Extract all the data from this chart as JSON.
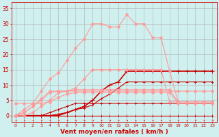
{
  "x": [
    0,
    1,
    2,
    3,
    4,
    5,
    6,
    7,
    8,
    9,
    10,
    11,
    12,
    13,
    14,
    15,
    16,
    17,
    18,
    19,
    20,
    21,
    22,
    23
  ],
  "background_color": "#cff0ee",
  "grid_color": "#b0b0b0",
  "xlabel": "Vent moyen/en rafales ( km/h )",
  "xlabel_color": "#cc0000",
  "tick_color": "#cc0000",
  "ylim": [
    -2,
    37
  ],
  "xlim": [
    -0.5,
    23.5
  ],
  "yticks": [
    0,
    5,
    10,
    15,
    20,
    25,
    30,
    35
  ],
  "lines": [
    {
      "y": [
        0,
        0,
        0,
        0,
        0,
        0,
        0,
        0,
        0,
        0,
        0,
        0,
        0,
        0,
        0,
        0,
        0,
        0,
        0,
        0,
        0,
        0,
        0,
        0
      ],
      "color": "#cc0000",
      "marker": "+",
      "lw": 0.8,
      "ms": 3.5
    },
    {
      "y": [
        0,
        0,
        0,
        0,
        1,
        2,
        3,
        4,
        4,
        4,
        4,
        4,
        4,
        4,
        4,
        4,
        4,
        4,
        4,
        4,
        4,
        4,
        4,
        4
      ],
      "color": "#cc0000",
      "marker": "+",
      "lw": 0.8,
      "ms": 3.5
    },
    {
      "y": [
        0,
        0,
        0,
        0,
        0,
        0,
        1,
        2,
        3,
        5,
        8,
        10,
        11,
        14.5,
        14.5,
        14.5,
        14.5,
        14.5,
        14.5,
        14.5,
        14.5,
        14.5,
        14.5,
        14.5
      ],
      "color": "#cc0000",
      "marker": "+",
      "lw": 1.2,
      "ms": 4
    },
    {
      "y": [
        0,
        0,
        0,
        0,
        0,
        0.5,
        1,
        2,
        2.5,
        3.5,
        5.5,
        7,
        9,
        11,
        11,
        11,
        11,
        11,
        11,
        11,
        11,
        11,
        11,
        11
      ],
      "color": "#cc0000",
      "marker": "+",
      "lw": 0.8,
      "ms": 3.5
    },
    {
      "y": [
        4,
        4,
        4,
        4,
        4.5,
        6,
        7,
        7.5,
        7.5,
        7.5,
        7.5,
        7.5,
        7.5,
        7.5,
        7.5,
        7.5,
        7.5,
        7.5,
        7.5,
        4,
        4,
        4,
        4,
        4
      ],
      "color": "#ff9999",
      "marker": "o",
      "lw": 0.8,
      "ms": 2.5
    },
    {
      "y": [
        0,
        1,
        3,
        5,
        7.5,
        8,
        8,
        8,
        8,
        8,
        8,
        8,
        8,
        8,
        8,
        8,
        8,
        8,
        8,
        8,
        8,
        8,
        8,
        8
      ],
      "color": "#ff9999",
      "marker": "o",
      "lw": 0.8,
      "ms": 2.5
    },
    {
      "y": [
        0,
        0,
        1,
        3,
        5,
        7.5,
        8,
        8.5,
        8.5,
        8.5,
        8.5,
        8.5,
        8.5,
        8.5,
        8.5,
        8.5,
        8.5,
        8.5,
        8.5,
        4.5,
        4.5,
        4.5,
        4.5,
        4.5
      ],
      "color": "#ff9999",
      "marker": "o",
      "lw": 0.8,
      "ms": 2.5
    },
    {
      "y": [
        0,
        1,
        3,
        5.5,
        8,
        8,
        8,
        9,
        12,
        15,
        15,
        15,
        15,
        15,
        15,
        15,
        15,
        15,
        4.5,
        4.5,
        4.5,
        4.5,
        4.5,
        4.5
      ],
      "color": "#ff9999",
      "marker": "o",
      "lw": 0.8,
      "ms": 2.5
    },
    {
      "y": [
        0,
        2,
        4,
        8,
        12,
        14,
        18,
        22,
        25,
        30,
        30,
        29,
        29,
        33,
        30,
        30,
        25.5,
        25.5,
        14.5,
        4.5,
        4.5,
        4.5,
        4.5,
        4.5
      ],
      "color": "#ff9999",
      "marker": "o",
      "lw": 0.8,
      "ms": 2.5
    }
  ],
  "arrow_annotations": [
    0,
    1,
    2,
    3,
    4,
    5,
    6,
    7,
    8,
    9,
    10,
    11,
    12,
    13,
    14,
    15,
    16,
    17,
    18,
    19,
    20,
    21,
    22,
    23
  ]
}
